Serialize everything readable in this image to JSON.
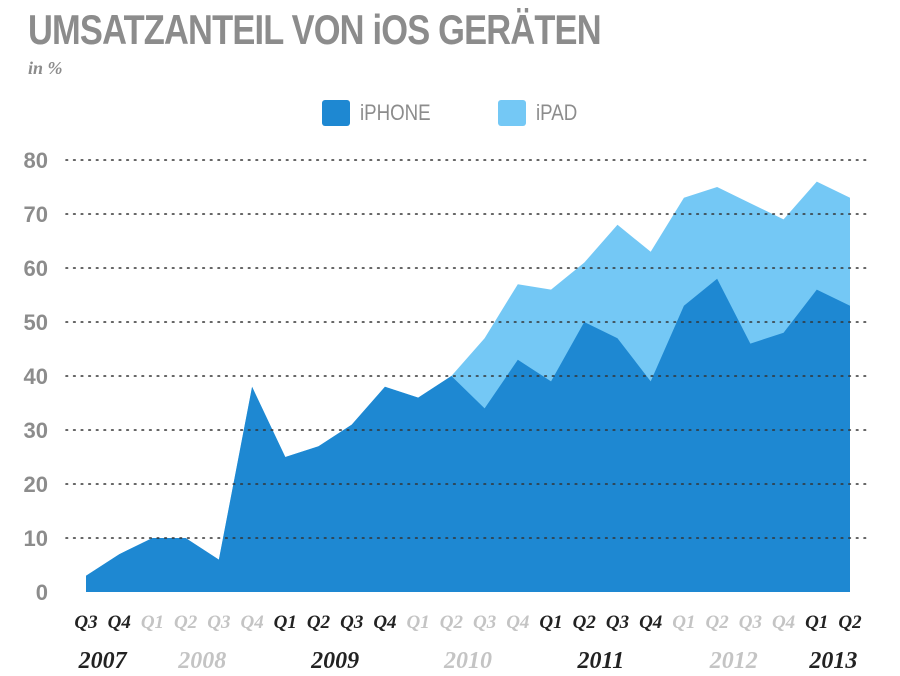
{
  "title": "UMSATZANTEIL VON iOS GERÄTEN",
  "subtitle": "in %",
  "legend": [
    {
      "label": "iPHONE",
      "color": "#1e88d2"
    },
    {
      "label": "iPAD",
      "color": "#74c8f5"
    }
  ],
  "chart_data": {
    "type": "area",
    "title": "UMSATZANTEIL VON iOS GERÄTEN",
    "subtitle": "in %",
    "ylim": [
      0,
      80
    ],
    "yticks": [
      0,
      10,
      20,
      30,
      40,
      50,
      60,
      70,
      80
    ],
    "grid": true,
    "stacked": true,
    "legend_position": "top-center",
    "categories": [
      "Q3",
      "Q4",
      "Q1",
      "Q2",
      "Q3",
      "Q4",
      "Q1",
      "Q2",
      "Q3",
      "Q4",
      "Q1",
      "Q2",
      "Q3",
      "Q4",
      "Q1",
      "Q2",
      "Q3",
      "Q4",
      "Q1",
      "Q2",
      "Q3",
      "Q4",
      "Q1",
      "Q2"
    ],
    "category_active": [
      true,
      true,
      false,
      false,
      false,
      false,
      true,
      true,
      true,
      true,
      false,
      false,
      false,
      false,
      true,
      true,
      true,
      true,
      false,
      false,
      false,
      false,
      true,
      true
    ],
    "years": [
      {
        "label": "2007",
        "start": 0,
        "end": 1,
        "active": true
      },
      {
        "label": "2008",
        "start": 2,
        "end": 5,
        "active": false
      },
      {
        "label": "2009",
        "start": 6,
        "end": 9,
        "active": true
      },
      {
        "label": "2010",
        "start": 10,
        "end": 13,
        "active": false
      },
      {
        "label": "2011",
        "start": 14,
        "end": 17,
        "active": true
      },
      {
        "label": "2012",
        "start": 18,
        "end": 21,
        "active": false
      },
      {
        "label": "2013",
        "start": 22,
        "end": 23,
        "active": true
      }
    ],
    "series": [
      {
        "name": "iPHONE",
        "color": "#1e88d2",
        "values": [
          3,
          7,
          10,
          10,
          6,
          38,
          25,
          27,
          31,
          38,
          36,
          40,
          34,
          43,
          39,
          50,
          47,
          39,
          53,
          58,
          46,
          48,
          56,
          53
        ]
      },
      {
        "name": "iPAD",
        "color": "#74c8f5",
        "values": [
          0,
          0,
          0,
          0,
          0,
          0,
          0,
          0,
          0,
          0,
          0,
          0,
          13,
          14,
          17,
          11,
          21,
          24,
          20,
          17,
          26,
          21,
          20,
          20
        ]
      }
    ]
  }
}
